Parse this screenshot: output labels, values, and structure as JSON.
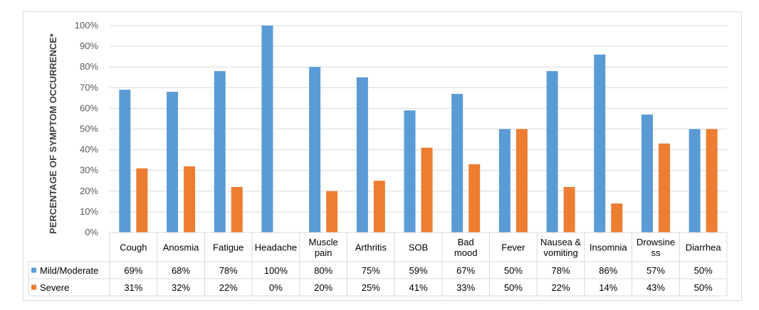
{
  "chart_data": {
    "type": "bar",
    "title": "",
    "xlabel": "",
    "ylabel": "PERCENTAGE OF SYMPTOM OCCURRENCE*",
    "ylim": [
      0,
      100
    ],
    "yticks": [
      "0%",
      "10%",
      "20%",
      "30%",
      "40%",
      "50%",
      "60%",
      "70%",
      "80%",
      "90%",
      "100%"
    ],
    "grid": true,
    "legend": "table-left",
    "categories": [
      [
        "Cough"
      ],
      [
        "Anosmia"
      ],
      [
        "Fatigue"
      ],
      [
        "Headache"
      ],
      [
        "Muscle",
        "pain"
      ],
      [
        "Arthritis"
      ],
      [
        "SOB"
      ],
      [
        "Bad",
        "mood"
      ],
      [
        "Fever"
      ],
      [
        "Nausea &",
        "vomiting"
      ],
      [
        "Insomnia"
      ],
      [
        "Drowsine",
        "ss"
      ],
      [
        "Diarrhea"
      ]
    ],
    "series": [
      {
        "name": "Mild/Moderate",
        "color": "#5b9bd5",
        "values": [
          69,
          68,
          78,
          100,
          80,
          75,
          59,
          67,
          50,
          78,
          86,
          57,
          50
        ],
        "labels": [
          "69%",
          "68%",
          "78%",
          "100%",
          "80%",
          "75%",
          "59%",
          "67%",
          "50%",
          "78%",
          "86%",
          "57%",
          "50%"
        ]
      },
      {
        "name": "Severe",
        "color": "#ed7d31",
        "values": [
          31,
          32,
          22,
          0,
          20,
          25,
          41,
          33,
          50,
          22,
          14,
          43,
          50
        ],
        "labels": [
          "31%",
          "32%",
          "22%",
          "0%",
          "20%",
          "25%",
          "41%",
          "33%",
          "50%",
          "22%",
          "14%",
          "43%",
          "50%"
        ]
      }
    ]
  }
}
